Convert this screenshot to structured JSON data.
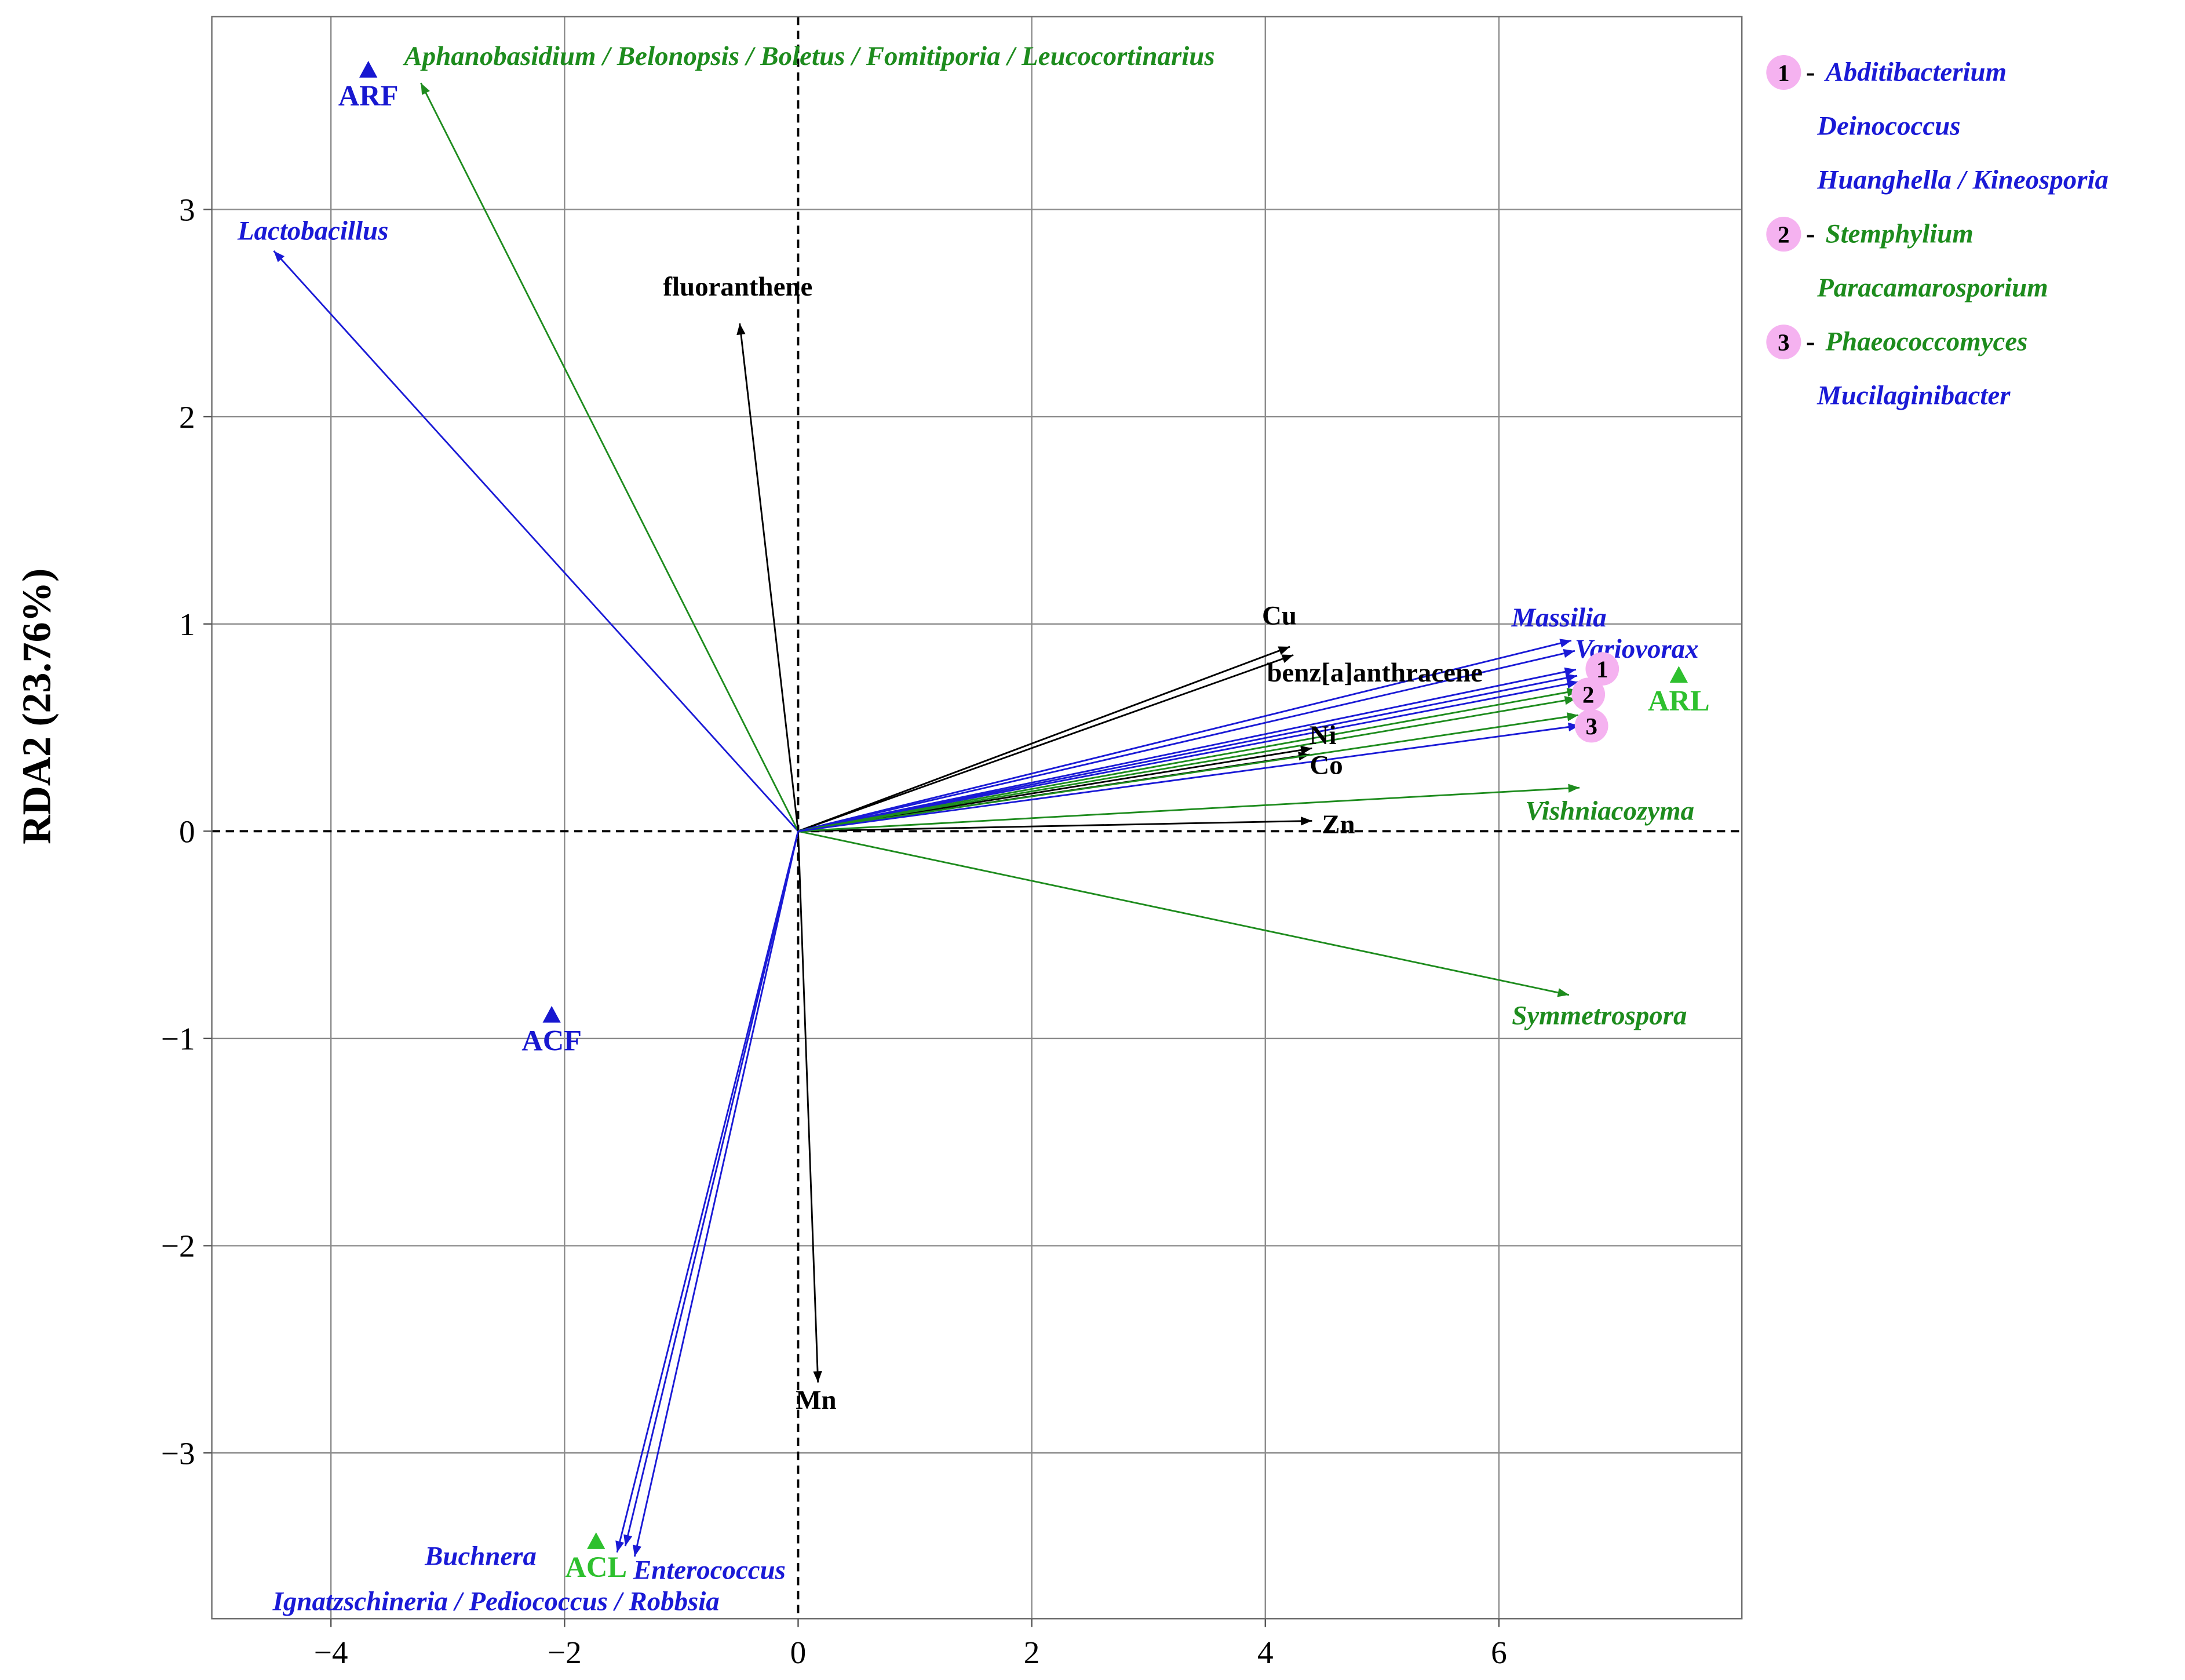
{
  "chart_data": {
    "type": "scatter",
    "ylabel": "RDA2 (23.76%)",
    "xlim": [
      -5.02,
      8.08
    ],
    "ylim": [
      -3.8,
      3.93
    ],
    "xticks": [
      -4,
      -2,
      0,
      2,
      4,
      6
    ],
    "xtick_labels": [
      "−4",
      "−2",
      "0",
      "2",
      "4",
      "6"
    ],
    "yticks": [
      3,
      2,
      1,
      0,
      -1,
      -2,
      -3
    ],
    "ytick_labels": [
      "3",
      "2",
      "1",
      "0",
      "−1",
      "−2",
      "−3"
    ],
    "grid": true,
    "legend_position": "right",
    "colors": {
      "grid": "#8c8c8c",
      "frame": "#6e6e6e",
      "zero_line": "#000000",
      "cluster_badge": "#f5b2f0",
      "environment": "#000000"
    },
    "arrows": [
      {
        "label": "Lactobacillus",
        "x": -4.49,
        "y": 2.8,
        "color": "#1a1ad6"
      },
      {
        "label": "Aphanobasidium / Belonopsis / Boletus / Fomitiporia / Leucocortinarius",
        "x": -3.23,
        "y": 3.61,
        "color": "#1e8c1e"
      },
      {
        "label": "fluoranthene",
        "x": -0.5,
        "y": 2.45,
        "color": "#000000"
      },
      {
        "label": "Cu",
        "x": 4.21,
        "y": 0.89,
        "color": "#000000"
      },
      {
        "label": "benz[a]anthracene",
        "x": 4.24,
        "y": 0.85,
        "color": "#000000"
      },
      {
        "label": "Massilia",
        "x": 6.62,
        "y": 0.92,
        "color": "#1a1ad6"
      },
      {
        "label": "Variovorax",
        "x": 6.65,
        "y": 0.87,
        "color": "#1a1ad6"
      },
      {
        "label": "Ni",
        "x": 4.4,
        "y": 0.4,
        "color": "#000000"
      },
      {
        "label": "Co",
        "x": 4.38,
        "y": 0.37,
        "color": "#000000"
      },
      {
        "label": "Zn",
        "x": 4.4,
        "y": 0.05,
        "color": "#000000"
      },
      {
        "label": "Vishniacozyma",
        "x": 6.69,
        "y": 0.21,
        "color": "#1e8c1e"
      },
      {
        "label": "Symmetrospora",
        "x": 6.6,
        "y": -0.79,
        "color": "#1e8c1e"
      },
      {
        "label": "Mn",
        "x": 0.17,
        "y": -2.66,
        "color": "#000000"
      },
      {
        "label": "Buchnera",
        "x": -1.55,
        "y": -3.48,
        "color": "#1a1ad6"
      },
      {
        "label": "Enterococcus",
        "x": -1.4,
        "y": -3.5,
        "color": "#1a1ad6"
      },
      {
        "label": "Ignatzschineria / Pediococcus / Robbsia",
        "x": -1.48,
        "y": -3.45,
        "color": "#1a1ad6"
      }
    ],
    "clusters": [
      {
        "id": "1",
        "members": [
          {
            "name": "Abditibacterium",
            "x": 6.66,
            "y": 0.78,
            "color": "#1a1ad6"
          },
          {
            "name": "Deinococcus",
            "x": 6.67,
            "y": 0.75,
            "color": "#1a1ad6"
          },
          {
            "name": "Huanghella / Kineosporia",
            "x": 6.68,
            "y": 0.72,
            "color": "#1a1ad6"
          }
        ]
      },
      {
        "id": "2",
        "members": [
          {
            "name": "Stemphylium",
            "x": 6.68,
            "y": 0.68,
            "color": "#1e8c1e"
          },
          {
            "name": "Paracamarosporium",
            "x": 6.66,
            "y": 0.64,
            "color": "#1e8c1e"
          }
        ]
      },
      {
        "id": "3",
        "members": [
          {
            "name": "Phaeococcomyces",
            "x": 6.68,
            "y": 0.56,
            "color": "#1e8c1e"
          },
          {
            "name": "Mucilaginibacter",
            "x": 6.69,
            "y": 0.51,
            "color": "#1a1ad6"
          }
        ]
      }
    ],
    "legend_separator": "-",
    "samples": [
      {
        "label": "ARF",
        "x": -3.68,
        "y": 3.67,
        "color": "#1717d0"
      },
      {
        "label": "ACF",
        "x": -2.11,
        "y": -0.89,
        "color": "#1717d0"
      },
      {
        "label": "ACL",
        "x": -1.73,
        "y": -3.43,
        "color": "#2ec02e"
      },
      {
        "label": "ARL",
        "x": 7.54,
        "y": 0.75,
        "color": "#2ec02e"
      }
    ]
  }
}
